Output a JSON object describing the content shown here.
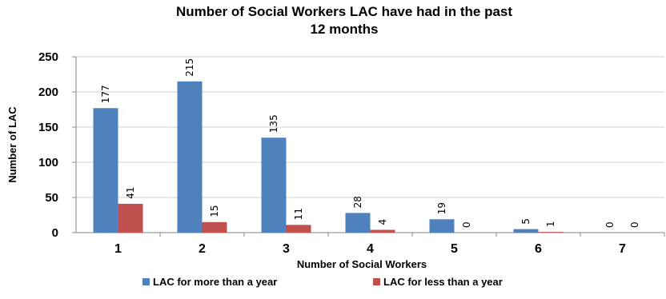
{
  "chart_data": {
    "type": "bar",
    "title": "Number of Social Workers LAC have had in the past 12 months",
    "title_lines": [
      "Number of Social Workers LAC have had in the past",
      "12 months"
    ],
    "xlabel": "Number of Social Workers",
    "ylabel": "Number of LAC",
    "categories": [
      "1",
      "2",
      "3",
      "4",
      "5",
      "6",
      "7"
    ],
    "ylim": [
      0,
      250
    ],
    "yticks": [
      0,
      50,
      100,
      150,
      200,
      250
    ],
    "grid": true,
    "legend_position": "bottom",
    "series": [
      {
        "name": "LAC for more than a year",
        "color": "#4F81BD",
        "values": [
          177,
          215,
          135,
          28,
          19,
          5,
          0
        ]
      },
      {
        "name": "LAC for less than a year",
        "color": "#C0504D",
        "values": [
          41,
          15,
          11,
          4,
          0,
          1,
          0
        ]
      }
    ]
  }
}
